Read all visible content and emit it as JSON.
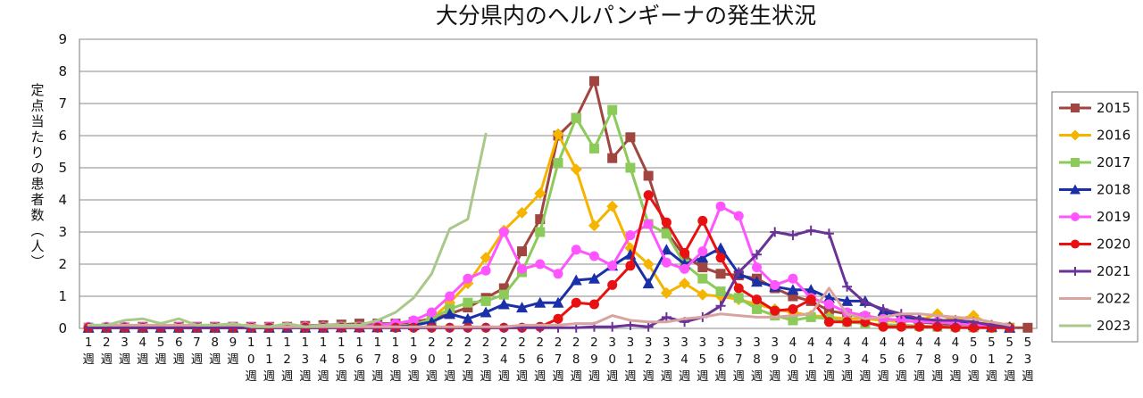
{
  "chart_data": {
    "type": "line",
    "title": "大分県内のヘルパンギーナの発生状況",
    "ylabel": "定点当たりの患者数（人）",
    "xlabel": "",
    "ylim": [
      0,
      9
    ],
    "yticks": [
      0,
      1,
      2,
      3,
      4,
      5,
      6,
      7,
      8,
      9
    ],
    "x": [
      1,
      2,
      3,
      4,
      5,
      6,
      7,
      8,
      9,
      10,
      11,
      12,
      13,
      14,
      15,
      16,
      17,
      18,
      19,
      20,
      21,
      22,
      23,
      24,
      25,
      26,
      27,
      28,
      29,
      30,
      31,
      32,
      33,
      34,
      35,
      36,
      37,
      38,
      39,
      40,
      41,
      42,
      43,
      44,
      45,
      46,
      47,
      48,
      49,
      50,
      51,
      52,
      53
    ],
    "x_unit": "週",
    "grid": "horizontal",
    "legend_position": "right",
    "colors": {
      "2015": "#A0453F",
      "2016": "#F5B400",
      "2017": "#8CCB5A",
      "2018": "#1B2FA8",
      "2019": "#FF55FF",
      "2020": "#E81010",
      "2021": "#6A3297",
      "2022": "#D9A3A0",
      "2023": "#A9C98A"
    },
    "series": [
      {
        "name": "2015",
        "marker": "square",
        "values": [
          0.02,
          0.02,
          0.03,
          0.05,
          0.03,
          0.05,
          0.05,
          0.05,
          0.05,
          0.05,
          0.05,
          0.05,
          0.08,
          0.1,
          0.12,
          0.15,
          0.15,
          0.15,
          0.2,
          0.3,
          0.45,
          0.65,
          0.95,
          1.25,
          2.4,
          3.4,
          6.0,
          6.55,
          7.7,
          5.3,
          5.95,
          4.75,
          3.0,
          2.25,
          1.9,
          1.7,
          1.65,
          1.55,
          1.25,
          1.0,
          0.85,
          0.55,
          0.45,
          0.35,
          0.3,
          0.25,
          0.2,
          0.15,
          0.1,
          0.08,
          0.05,
          0.02,
          0.02
        ]
      },
      {
        "name": "2016",
        "marker": "diamond",
        "values": [
          0.02,
          0.02,
          0.02,
          0.02,
          0.02,
          0.02,
          0.02,
          0.02,
          0.02,
          0.03,
          0.03,
          0.03,
          0.05,
          0.05,
          0.05,
          0.05,
          0.05,
          0.08,
          0.1,
          0.3,
          0.8,
          1.4,
          2.2,
          3.05,
          3.6,
          4.2,
          6.05,
          4.95,
          3.2,
          3.8,
          2.5,
          2.0,
          1.1,
          1.4,
          1.05,
          1.0,
          0.9,
          0.75,
          0.6,
          0.5,
          0.4,
          0.35,
          0.3,
          0.3,
          0.25,
          0.2,
          0.25,
          0.45,
          0.25,
          0.4,
          0.1,
          0.05,
          null
        ]
      },
      {
        "name": "2017",
        "marker": "square",
        "values": [
          0.03,
          0.02,
          0.02,
          0.02,
          0.02,
          0.02,
          0.02,
          0.02,
          0.02,
          0.02,
          0.02,
          0.02,
          0.02,
          0.03,
          0.05,
          0.05,
          0.05,
          0.05,
          0.1,
          0.3,
          0.6,
          0.8,
          0.85,
          1.05,
          1.75,
          3.0,
          5.15,
          6.55,
          5.6,
          6.8,
          5.0,
          3.25,
          2.95,
          2.0,
          1.55,
          1.15,
          0.95,
          0.6,
          0.4,
          0.25,
          0.35,
          0.3,
          0.2,
          0.15,
          0.12,
          0.1,
          0.08,
          0.05,
          0.05,
          0.03,
          0.02,
          0.02,
          null
        ]
      },
      {
        "name": "2018",
        "marker": "triangle",
        "values": [
          0.02,
          0.02,
          0.02,
          0.02,
          0.02,
          0.02,
          0.02,
          0.02,
          0.02,
          0.02,
          0.02,
          0.02,
          0.02,
          0.02,
          0.03,
          0.03,
          0.03,
          0.05,
          0.1,
          0.2,
          0.45,
          0.3,
          0.5,
          0.75,
          0.65,
          0.8,
          0.8,
          1.5,
          1.55,
          1.95,
          2.3,
          1.4,
          2.45,
          2.0,
          2.2,
          2.5,
          1.7,
          1.45,
          1.3,
          1.2,
          1.2,
          0.95,
          0.85,
          0.85,
          0.55,
          0.35,
          0.3,
          0.2,
          0.2,
          0.1,
          0.05,
          0.02,
          null
        ]
      },
      {
        "name": "2019",
        "marker": "circle",
        "values": [
          0.05,
          0.05,
          0.05,
          0.05,
          0.05,
          0.05,
          0.05,
          0.05,
          0.05,
          0.05,
          0.05,
          0.05,
          0.05,
          0.05,
          0.05,
          0.05,
          0.1,
          0.15,
          0.25,
          0.5,
          1.0,
          1.55,
          1.8,
          3.0,
          1.85,
          2.0,
          1.7,
          2.45,
          2.25,
          1.95,
          2.9,
          3.25,
          2.05,
          1.85,
          2.4,
          3.8,
          3.5,
          1.9,
          1.35,
          1.55,
          0.95,
          0.75,
          0.5,
          0.4,
          0.3,
          0.25,
          0.2,
          0.2,
          0.15,
          0.1,
          0.05,
          0.02,
          null
        ]
      },
      {
        "name": "2020",
        "marker": "circle",
        "values": [
          0.02,
          0.02,
          0.02,
          0.02,
          0.02,
          0.02,
          0.02,
          0.02,
          0.02,
          0.02,
          0.02,
          0.05,
          0.02,
          0.02,
          0.02,
          0.02,
          0.02,
          0.02,
          0.02,
          0.02,
          0.02,
          0.02,
          0.02,
          0.02,
          0.02,
          0.05,
          0.3,
          0.8,
          0.75,
          1.35,
          1.95,
          4.15,
          3.3,
          2.35,
          3.35,
          2.2,
          1.25,
          0.9,
          0.55,
          0.6,
          0.9,
          0.2,
          0.2,
          0.2,
          0.05,
          0.05,
          0.05,
          0.05,
          0.02,
          0.02,
          0.02,
          0.02,
          null
        ]
      },
      {
        "name": "2021",
        "marker": "plus",
        "values": [
          0.02,
          0.02,
          0.02,
          0.02,
          0.02,
          0.02,
          0.02,
          0.02,
          0.02,
          0.02,
          0.02,
          0.02,
          0.02,
          0.02,
          0.02,
          0.02,
          0.02,
          0.02,
          0.02,
          0.02,
          0.02,
          0.02,
          0.02,
          0.02,
          0.02,
          0.02,
          0.02,
          0.02,
          0.05,
          0.05,
          0.1,
          0.05,
          0.35,
          0.2,
          0.35,
          0.7,
          1.75,
          2.3,
          3.0,
          2.9,
          3.05,
          2.95,
          1.3,
          0.8,
          0.6,
          0.45,
          0.3,
          0.25,
          0.25,
          0.2,
          0.1,
          0.05,
          null
        ]
      },
      {
        "name": "2022",
        "marker": "none",
        "values": [
          0.1,
          0.1,
          0.1,
          0.1,
          0.1,
          0.1,
          0.1,
          0.1,
          0.1,
          0.1,
          0.05,
          0.05,
          0.05,
          0.05,
          0.05,
          0.05,
          0.05,
          0.05,
          0.05,
          0.05,
          0.05,
          0.05,
          0.05,
          0.05,
          0.1,
          0.1,
          0.1,
          0.15,
          0.15,
          0.4,
          0.25,
          0.2,
          0.2,
          0.3,
          0.35,
          0.45,
          0.4,
          0.35,
          0.35,
          0.4,
          0.45,
          1.25,
          0.45,
          0.3,
          0.35,
          0.45,
          0.45,
          0.4,
          0.35,
          0.3,
          0.2,
          0.1,
          null
        ]
      },
      {
        "name": "2023",
        "marker": "none",
        "values": [
          0.1,
          0.1,
          0.25,
          0.3,
          0.15,
          0.3,
          0.1,
          0.1,
          0.15,
          0.05,
          0.05,
          0.15,
          0.05,
          0.1,
          0.1,
          0.1,
          0.25,
          0.5,
          0.95,
          1.7,
          3.1,
          3.4,
          6.05,
          null,
          null,
          null,
          null,
          null,
          null,
          null,
          null,
          null,
          null,
          null,
          null,
          null,
          null,
          null,
          null,
          null,
          null,
          null,
          null,
          null,
          null,
          null,
          null,
          null,
          null,
          null,
          null,
          null,
          null
        ]
      }
    ]
  }
}
